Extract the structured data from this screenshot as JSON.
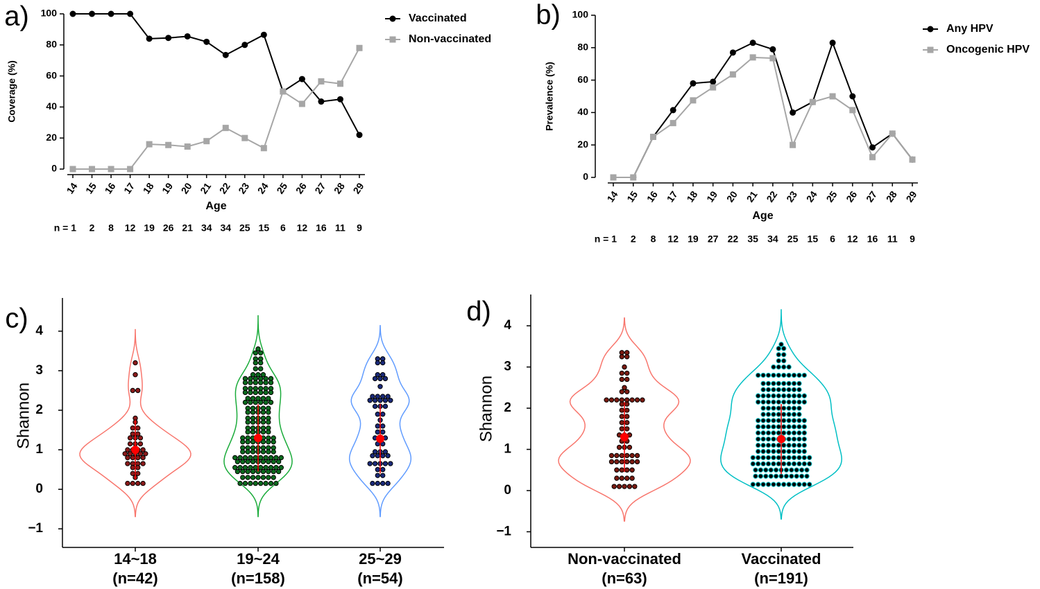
{
  "chart_data": [
    {
      "type": "line",
      "panel_label": "a)",
      "x_label": "Age",
      "y_label": "Coverage (%)",
      "categories": [
        "14",
        "15",
        "16",
        "17",
        "18",
        "19",
        "20",
        "21",
        "22",
        "23",
        "24",
        "25",
        "26",
        "27",
        "28",
        "29"
      ],
      "n_labels": [
        "n = 1",
        "2",
        "8",
        "12",
        "19",
        "26",
        "21",
        "34",
        "34",
        "25",
        "15",
        "6",
        "12",
        "16",
        "11",
        "9"
      ],
      "ylim": [
        0,
        100
      ],
      "yticks": [
        0,
        20,
        40,
        60,
        80,
        100
      ],
      "grid": false,
      "legend": "right",
      "series": [
        {
          "name": "Vaccinated",
          "color": "#000000",
          "marker": "circle",
          "values": [
            100,
            100,
            100,
            100,
            84,
            84.5,
            85.5,
            82,
            73.5,
            80,
            86.5,
            50,
            58,
            43.5,
            45,
            22
          ]
        },
        {
          "name": "Non-vaccinated",
          "color": "#a6a6a6",
          "marker": "square",
          "values": [
            0,
            0,
            0,
            0,
            16,
            15.5,
            14.5,
            18,
            26.5,
            20,
            13.5,
            50,
            42,
            56.5,
            55,
            78
          ]
        }
      ]
    },
    {
      "type": "line",
      "panel_label": "b)",
      "x_label": "Age",
      "y_label": "Prevalence (%)",
      "categories": [
        "14",
        "15",
        "16",
        "17",
        "18",
        "19",
        "20",
        "21",
        "22",
        "23",
        "24",
        "25",
        "26",
        "27",
        "28",
        "29"
      ],
      "n_labels": [
        "n = 1",
        "2",
        "8",
        "12",
        "19",
        "27",
        "22",
        "35",
        "34",
        "25",
        "15",
        "6",
        "12",
        "16",
        "11",
        "9"
      ],
      "ylim": [
        0,
        100
      ],
      "yticks": [
        0,
        20,
        40,
        60,
        80,
        100
      ],
      "grid": false,
      "legend": "right",
      "series": [
        {
          "name": "Any HPV",
          "color": "#000000",
          "marker": "circle",
          "values": [
            0,
            0,
            25,
            41.5,
            58,
            59,
            77,
            83,
            79,
            40,
            46.5,
            83,
            50,
            18.5,
            27,
            11
          ]
        },
        {
          "name": "Oncogenic HPV",
          "color": "#a6a6a6",
          "marker": "square",
          "values": [
            0,
            0,
            25,
            33.5,
            47.5,
            55.5,
            63.5,
            74,
            73.5,
            20,
            46.5,
            50,
            41.5,
            12.5,
            27,
            11
          ]
        }
      ]
    },
    {
      "type": "violin",
      "panel_label": "c)",
      "y_label": "Shannon",
      "ylim": [
        -1.47,
        4.84
      ],
      "yticks": [
        {
          "value": -1,
          "label": "−1"
        },
        0,
        1,
        2,
        3,
        4
      ],
      "mean_color": "#ff0000",
      "groups": [
        {
          "name": "14~18",
          "sublabel": "(n=42)",
          "color": "#f8766d",
          "dot_fill": "#8b1a1a",
          "dot_stroke": "#000000",
          "dot_values": [
            3.2,
            2.9,
            2.5,
            1.8,
            1.7,
            1.55,
            1.4,
            1.3,
            1.15,
            1.0,
            0.9,
            0.8,
            0.65,
            0.55,
            0.4,
            0.3,
            0.15
          ],
          "dot_counts": [
            1,
            1,
            2,
            1,
            1,
            2,
            2,
            3,
            3,
            4,
            5,
            4,
            4,
            2,
            2,
            1,
            4
          ],
          "mean": 1.0,
          "sd": 0.75
        },
        {
          "name": "19~24",
          "sublabel": "(n=158)",
          "color": "#1aab3a",
          "dot_fill": "#0b6b1e",
          "dot_stroke": "#000000",
          "dot_values": [
            3.55,
            3.45,
            3.3,
            3.2,
            3.05,
            2.9,
            2.8,
            2.7,
            2.55,
            2.45,
            2.3,
            2.2,
            2.05,
            1.95,
            1.8,
            1.7,
            1.55,
            1.45,
            1.3,
            1.2,
            1.05,
            0.95,
            0.8,
            0.7,
            0.55,
            0.45,
            0.3,
            0.15
          ],
          "dot_counts": [
            1,
            2,
            2,
            2,
            2,
            3,
            6,
            6,
            6,
            6,
            5,
            6,
            5,
            5,
            5,
            5,
            5,
            5,
            7,
            7,
            7,
            7,
            10,
            9,
            10,
            9,
            7,
            8
          ],
          "mean": 1.3,
          "sd": 0.85
        },
        {
          "name": "25~29",
          "sublabel": "(n=54)",
          "color": "#619cff",
          "dot_fill": "#1a2a7a",
          "dot_stroke": "#000000",
          "dot_values": [
            3.3,
            3.2,
            2.9,
            2.8,
            2.6,
            2.35,
            2.25,
            2.1,
            1.9,
            1.75,
            1.6,
            1.45,
            1.3,
            1.15,
            0.95,
            0.85,
            0.65,
            0.5,
            0.35,
            0.15
          ],
          "dot_counts": [
            2,
            2,
            2,
            3,
            1,
            4,
            5,
            3,
            2,
            1,
            2,
            2,
            3,
            2,
            3,
            4,
            5,
            2,
            2,
            4
          ],
          "mean": 1.28,
          "sd": 0.88
        }
      ]
    },
    {
      "type": "violin",
      "panel_label": "d)",
      "y_label": "Shannon",
      "ylim": [
        -1.38,
        4.76
      ],
      "yticks": [
        {
          "value": -1,
          "label": "−1"
        },
        0,
        1,
        2,
        3,
        4
      ],
      "mean_color": "#ff0000",
      "groups": [
        {
          "name": "Non-vaccinated",
          "sublabel": "(n=63)",
          "color": "#f8766d",
          "dot_fill": "#7a1a10",
          "dot_stroke": "#000000",
          "dot_values": [
            3.35,
            3.25,
            3.0,
            2.85,
            2.7,
            2.5,
            2.4,
            2.2,
            2.1,
            1.95,
            1.8,
            1.65,
            1.5,
            1.35,
            1.2,
            1.05,
            0.85,
            0.7,
            0.5,
            0.3,
            0.1
          ],
          "dot_counts": [
            2,
            2,
            1,
            2,
            2,
            1,
            2,
            8,
            2,
            2,
            2,
            2,
            2,
            3,
            2,
            3,
            6,
            6,
            4,
            4,
            5
          ],
          "mean": 1.3,
          "sd": 0.85
        },
        {
          "name": "Vaccinated",
          "sublabel": "(n=191)",
          "color": "#00bfc4",
          "dot_fill": "#000000",
          "dot_stroke": "#00bfc4",
          "dot_values": [
            3.55,
            3.45,
            3.3,
            3.15,
            3.0,
            2.8,
            2.6,
            2.45,
            2.3,
            2.15,
            2.0,
            1.85,
            1.7,
            1.55,
            1.4,
            1.25,
            1.1,
            0.95,
            0.8,
            0.65,
            0.5,
            0.35,
            0.15
          ],
          "dot_counts": [
            1,
            2,
            2,
            2,
            4,
            10,
            8,
            8,
            10,
            10,
            8,
            8,
            10,
            10,
            10,
            10,
            10,
            10,
            12,
            12,
            11,
            11,
            12
          ],
          "mean": 1.25,
          "sd": 0.85
        }
      ]
    }
  ]
}
